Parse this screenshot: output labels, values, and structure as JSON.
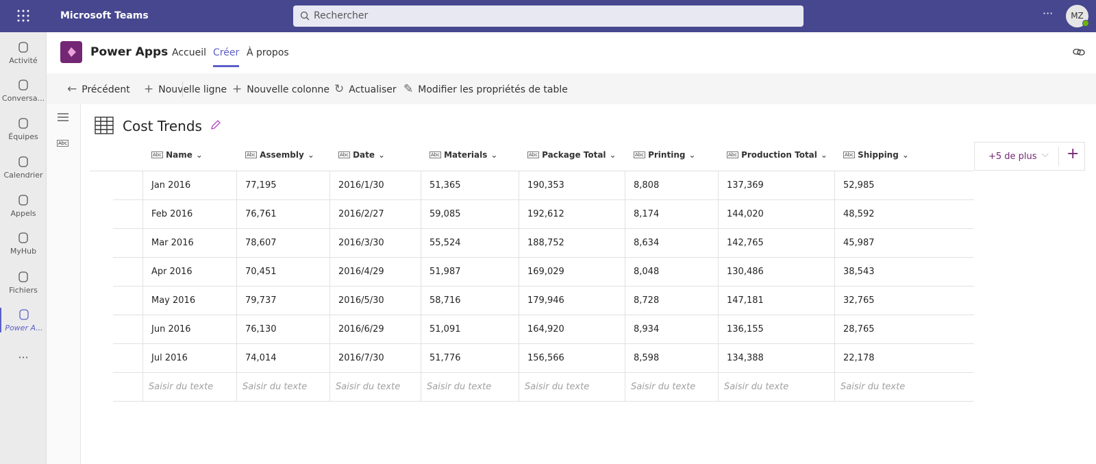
{
  "header": {
    "app": "Microsoft Teams",
    "search": "Rechercher",
    "avatar": "MZ"
  },
  "rail": [
    "Activité",
    "Conversa...",
    "Équipes",
    "Calendrier",
    "Appels",
    "MyHub",
    "Fichiers",
    "Power A..."
  ],
  "app": {
    "name": "Power Apps",
    "tabs": [
      "Accueil",
      "Créer",
      "À propos"
    ],
    "active_tab": 1
  },
  "toolbar": [
    "Précédent",
    "Nouvelle ligne",
    "Nouvelle colonne",
    "Actualiser",
    "Modifier les propriétés de table"
  ],
  "table": {
    "title": "Cost Trends",
    "type_icon": "Abc",
    "columns": [
      "Name",
      "Assembly",
      "Date",
      "Materials",
      "Package Total",
      "Printing",
      "Production Total",
      "Shipping"
    ],
    "rows": [
      [
        "Jan 2016",
        "77,195",
        "2016/1/30",
        "51,365",
        "190,353",
        "8,808",
        "137,369",
        "52,985"
      ],
      [
        "Feb 2016",
        "76,761",
        "2016/2/27",
        "59,085",
        "192,612",
        "8,174",
        "144,020",
        "48,592"
      ],
      [
        "Mar 2016",
        "78,607",
        "2016/3/30",
        "55,524",
        "188,752",
        "8,634",
        "142,765",
        "45,987"
      ],
      [
        "Apr 2016",
        "70,451",
        "2016/4/29",
        "51,987",
        "169,029",
        "8,048",
        "130,486",
        "38,543"
      ],
      [
        "May 2016",
        "79,737",
        "2016/5/30",
        "58,716",
        "179,946",
        "8,728",
        "147,181",
        "32,765"
      ],
      [
        "Jun 2016",
        "76,130",
        "2016/6/29",
        "51,091",
        "164,920",
        "8,934",
        "136,155",
        "28,765"
      ],
      [
        "Jul 2016",
        "74,014",
        "2016/7/30",
        "51,776",
        "156,566",
        "8,598",
        "134,388",
        "22,178"
      ]
    ],
    "placeholder": "Saisir du texte",
    "more": "+5 de plus"
  }
}
